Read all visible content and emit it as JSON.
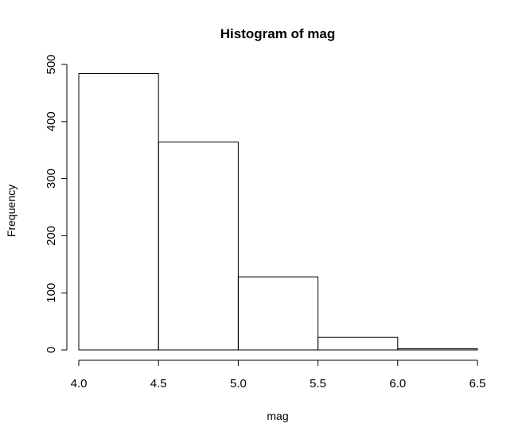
{
  "chart_data": {
    "type": "bar",
    "title": "Histogram of mag",
    "xlabel": "mag",
    "ylabel": "Frequency",
    "bins": [
      {
        "start": 4.0,
        "end": 4.5,
        "count": 484
      },
      {
        "start": 4.5,
        "end": 5.0,
        "count": 364
      },
      {
        "start": 5.0,
        "end": 5.5,
        "count": 128
      },
      {
        "start": 5.5,
        "end": 6.0,
        "count": 22
      },
      {
        "start": 6.0,
        "end": 6.5,
        "count": 2
      }
    ],
    "xlim": [
      4.0,
      6.5
    ],
    "ylim": [
      0,
      500
    ],
    "x_ticks": [
      "4.0",
      "4.5",
      "5.0",
      "5.5",
      "6.0",
      "6.5"
    ],
    "y_ticks": [
      "0",
      "100",
      "200",
      "300",
      "400",
      "500"
    ],
    "grid": false,
    "legend": "none"
  }
}
